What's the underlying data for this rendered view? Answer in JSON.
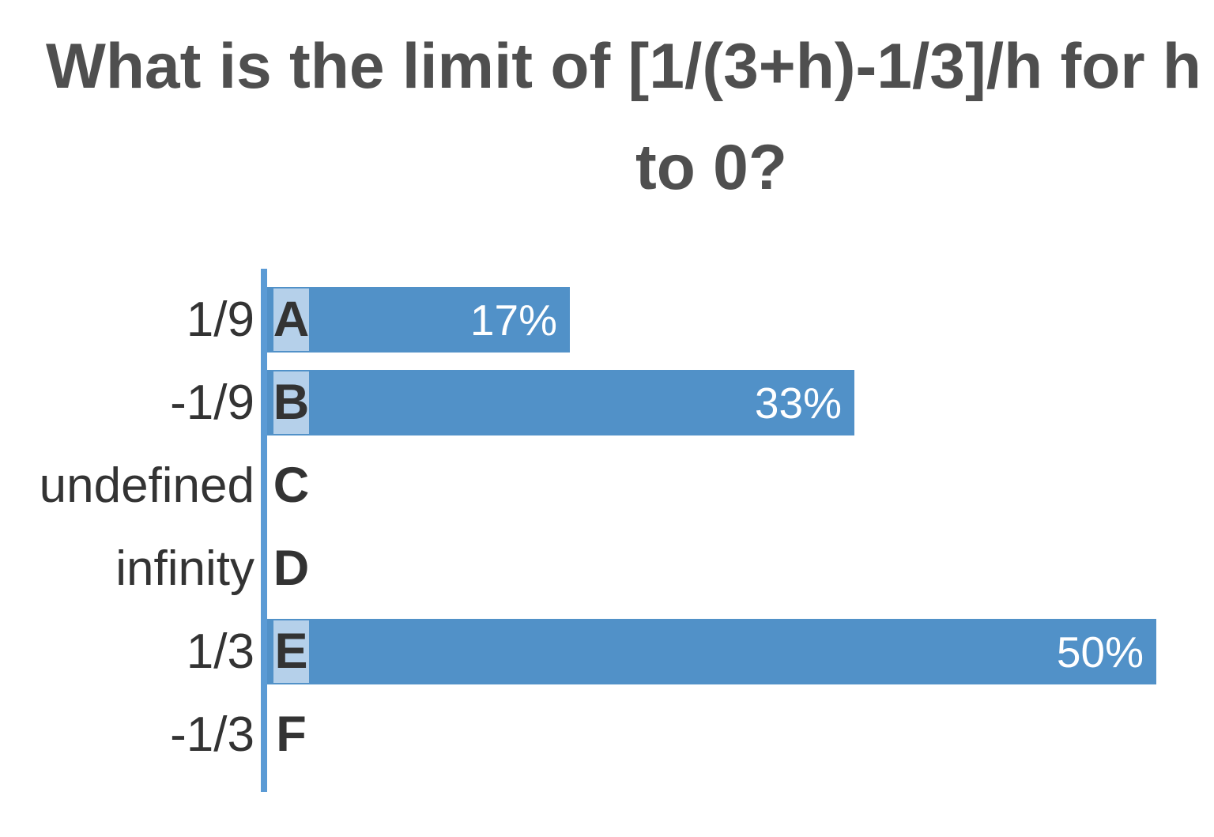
{
  "title": {
    "line1": "What is the limit of [1/(3+h)-1/3]/h for h",
    "line2": "to 0?"
  },
  "chart_data": {
    "type": "bar",
    "orientation": "horizontal",
    "title": "What is the limit of [1/(3+h)-1/3]/h for h to 0?",
    "categories": [
      "1/9",
      "-1/9",
      "undefined",
      "infinity",
      "1/3",
      "-1/3"
    ],
    "letters": [
      "A",
      "B",
      "C",
      "D",
      "E",
      "F"
    ],
    "values": [
      17,
      33,
      0,
      0,
      50,
      0
    ],
    "value_labels": [
      "17%",
      "33%",
      "",
      "",
      "50%",
      ""
    ],
    "xlim": [
      0,
      50
    ],
    "grid": false,
    "legend": false,
    "colors": {
      "bar": "#5191C8",
      "letter_chip": "#B5D0EA",
      "axis": "#5B9BD5",
      "title_text": "#4F4F4F",
      "label_text": "#333333",
      "percent_text": "#FFFFFF"
    }
  }
}
